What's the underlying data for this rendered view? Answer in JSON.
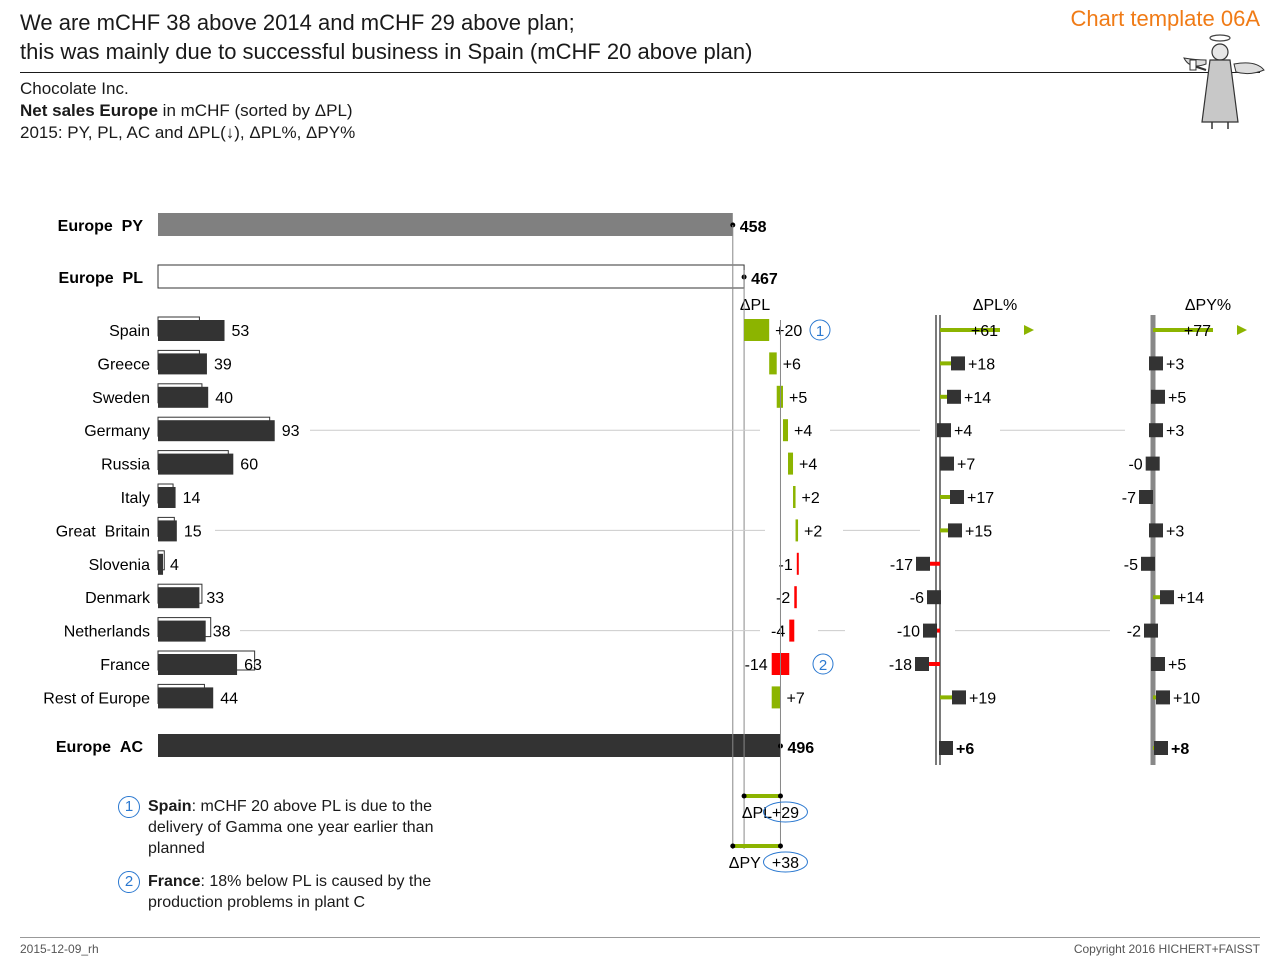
{
  "header": {
    "title_line1": "We are mCHF 38 above 2014 and mCHF 29 above plan;",
    "title_line2": "this was mainly due to successful business in Spain (mCHF 20 above plan)",
    "template_label": "Chart template 06A",
    "company": "Chocolate Inc.",
    "measure_bold": "Net sales Europe",
    "measure_rest": " in mCHF (sorted by ΔPL)",
    "scenario_line": "2015: PY, PL, AC and ΔPL(↓), ΔPL%, ΔPY%"
  },
  "footer": {
    "left": "2015-12-09_rh",
    "right": "Copyright 2016 HICHERT+FAISST"
  },
  "notes": [
    {
      "num": "1",
      "bold": "Spain",
      "text": ": mCHF 20 above PL is due to the delivery of Gamma one year earlier than planned"
    },
    {
      "num": "2",
      "bold": "France",
      "text": ": 18% below PL is caused by the production problems in plant C"
    }
  ],
  "colors": {
    "ac": "#333333",
    "py": "#808080",
    "positive": "#8cb400",
    "negative": "#ff0000",
    "accent": "#2a78d0",
    "brand": "#f07b16"
  },
  "chart_data": {
    "type": "bar",
    "unit": "mCHF",
    "totals": [
      {
        "label": "Europe  PY",
        "value": 458,
        "value_label": "458"
      },
      {
        "label": "Europe  PL",
        "value": 467,
        "value_label": "467"
      },
      {
        "label": "Europe  AC",
        "value": 496,
        "value_label": "496"
      }
    ],
    "categories": [
      "Spain",
      "Greece",
      "Sweden",
      "Germany",
      "Russia",
      "Italy",
      "Great  Britain",
      "Slovenia",
      "Denmark",
      "Netherlands",
      "France",
      "Rest of Europe"
    ],
    "series": [
      {
        "name": "AC",
        "values": [
          53,
          39,
          40,
          93,
          60,
          14,
          15,
          4,
          33,
          38,
          63,
          44
        ]
      },
      {
        "name": "PL",
        "values": [
          33,
          33,
          35,
          89,
          56,
          12,
          13,
          5,
          35,
          42,
          77,
          37
        ]
      },
      {
        "name": "ΔPL",
        "values": [
          20,
          6,
          5,
          4,
          4,
          2,
          2,
          -1,
          -2,
          -4,
          -14,
          7
        ]
      },
      {
        "name": "ΔPL%",
        "values": [
          61,
          18,
          14,
          4,
          7,
          17,
          15,
          -17,
          -6,
          -10,
          -18,
          19
        ]
      },
      {
        "name": "ΔPY%",
        "values": [
          77,
          3,
          5,
          3,
          -0.3,
          -7,
          3,
          -5,
          14,
          -2,
          5,
          10
        ]
      }
    ],
    "ac_labels": [
      "53",
      "39",
      "40",
      "93",
      "60",
      "14",
      "15",
      "4",
      "33",
      "38",
      "63",
      "44"
    ],
    "dpl_labels": [
      "+20",
      "+6",
      "+5",
      "+4",
      "+4",
      "+2",
      "+2",
      "-1",
      "-2",
      "-4",
      "-14",
      "+7"
    ],
    "dplpct_labels": [
      "+61",
      "+18",
      "+14",
      "+4",
      "+7",
      "+17",
      "+15",
      "-17",
      "-6",
      "-10",
      "-18",
      "+19"
    ],
    "dpypct_labels": [
      "+77",
      "+3",
      "+5",
      "+3",
      "-0",
      "-7",
      "+3",
      "-5",
      "+14",
      "-2",
      "+5",
      "+10"
    ],
    "column_headers": {
      "dpl": "ΔPL",
      "dplpct": "ΔPL%",
      "dpypct": "ΔPY%"
    },
    "total_dplpct": {
      "value": 6,
      "label": "+6"
    },
    "total_dpypct": {
      "value": 8,
      "label": "+8"
    },
    "summary": [
      {
        "label": "ΔPL",
        "value": 29,
        "value_label": "+29"
      },
      {
        "label": "ΔPY",
        "value": 38,
        "value_label": "+38"
      }
    ],
    "callouts": [
      {
        "category": "Spain",
        "num": "1"
      },
      {
        "category": "France",
        "num": "2"
      }
    ]
  }
}
